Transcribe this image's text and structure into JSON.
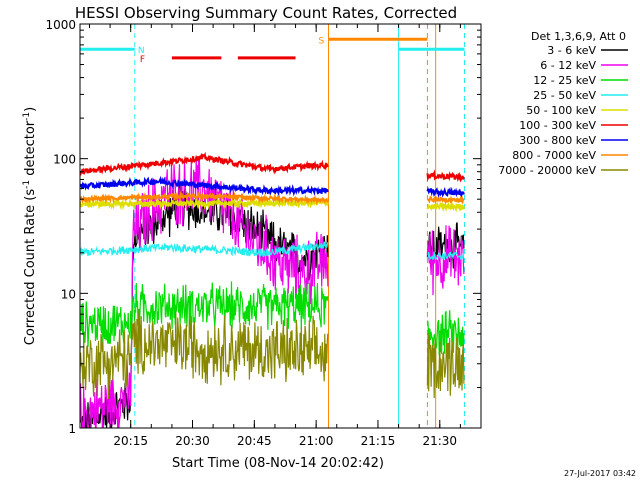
{
  "chart_data": {
    "type": "line",
    "title": "HESSI Observing Summary Count Rates, Corrected",
    "xlabel": "Start Time (08-Nov-14 20:02:42)",
    "ylabel_main": "Corrected Count Rate (s",
    "ylabel_sup1": "-1",
    "ylabel_mid": " detector",
    "ylabel_sup2": "-1",
    "ylabel_end": ")",
    "yscale": "log",
    "xlim": [
      "20:02:42",
      "21:40:00"
    ],
    "ylim": [
      1,
      1000
    ],
    "x_ticks": [
      "20:15",
      "20:30",
      "20:45",
      "21:00",
      "21:15",
      "21:30"
    ],
    "y_ticks": [
      "1",
      "10",
      "100",
      "1000"
    ],
    "footer_date": "27-Jul-2017 03:42",
    "legend_title": "Det 1,3,6,9, Att 0",
    "legend": [
      {
        "label": "3 - 6 keV",
        "color": "#000000"
      },
      {
        "label": "6 - 12 keV",
        "color": "#ee00ee"
      },
      {
        "label": "12 - 25 keV",
        "color": "#00dd00"
      },
      {
        "label": "25 - 50 keV",
        "color": "#22eeee"
      },
      {
        "label": "50 - 100 keV",
        "color": "#dddd00"
      },
      {
        "label": "100 - 300 keV",
        "color": "#ee0000"
      },
      {
        "label": "300 - 800 keV",
        "color": "#0000ee"
      },
      {
        "label": "800 - 7000 keV",
        "color": "#ff8800"
      },
      {
        "label": "7000 - 20000 keV",
        "color": "#888800"
      }
    ],
    "flag_labels": {
      "N": "N",
      "F": "F",
      "S": "S"
    },
    "segments": [
      {
        "start": "20:02:42",
        "end": "21:03:00"
      },
      {
        "start": "21:27:00",
        "end": "21:36:00"
      }
    ],
    "series": [
      {
        "name": "3 - 6 keV",
        "color": "#000000",
        "base": [
          [
            20.04,
            1.0
          ],
          [
            20.25,
            1.6
          ],
          [
            20.26,
            26
          ],
          [
            20.45,
            45
          ],
          [
            20.6,
            40
          ],
          [
            20.75,
            30
          ],
          [
            20.85,
            22
          ],
          [
            20.95,
            18
          ],
          [
            21.05,
            22
          ]
        ],
        "noise": 0.08
      },
      {
        "name": "6 - 12 keV",
        "color": "#ee00ee",
        "base": [
          [
            20.04,
            1.2
          ],
          [
            20.25,
            1.8
          ],
          [
            20.26,
            28
          ],
          [
            20.4,
            55
          ],
          [
            20.55,
            60
          ],
          [
            20.7,
            30
          ],
          [
            20.85,
            17
          ],
          [
            20.95,
            14
          ],
          [
            21.05,
            18
          ]
        ],
        "noise": 0.12
      },
      {
        "name": "12 - 25 keV",
        "color": "#00dd00",
        "base": [
          [
            20.04,
            6
          ],
          [
            20.25,
            6
          ],
          [
            20.26,
            8
          ],
          [
            20.6,
            8
          ],
          [
            21.05,
            8
          ],
          [
            21.45,
            5
          ],
          [
            21.6,
            5
          ]
        ],
        "noise": 0.08
      },
      {
        "name": "25 - 50 keV",
        "color": "#22eeee",
        "base": [
          [
            20.04,
            20
          ],
          [
            20.4,
            22
          ],
          [
            20.8,
            20
          ],
          [
            21.05,
            23
          ],
          [
            21.45,
            19
          ],
          [
            21.6,
            19
          ]
        ],
        "noise": 0.03
      },
      {
        "name": "50 - 100 keV",
        "color": "#dddd00",
        "base": [
          [
            20.04,
            46
          ],
          [
            21.05,
            47
          ],
          [
            21.45,
            44
          ],
          [
            21.6,
            44
          ]
        ],
        "noise": 0.02
      },
      {
        "name": "100 - 300 keV",
        "color": "#ee0000",
        "base": [
          [
            20.04,
            80
          ],
          [
            20.3,
            90
          ],
          [
            20.55,
            102
          ],
          [
            20.8,
            84
          ],
          [
            21.05,
            90
          ],
          [
            21.45,
            75
          ],
          [
            21.6,
            73
          ]
        ],
        "noise": 0.02
      },
      {
        "name": "300 - 800 keV",
        "color": "#0000ee",
        "base": [
          [
            20.04,
            62
          ],
          [
            20.35,
            68
          ],
          [
            20.8,
            58
          ],
          [
            21.05,
            58
          ],
          [
            21.45,
            57
          ],
          [
            21.6,
            55
          ]
        ],
        "noise": 0.02
      },
      {
        "name": "800 - 7000 keV",
        "color": "#ff8800",
        "base": [
          [
            20.04,
            50
          ],
          [
            20.5,
            53
          ],
          [
            21.05,
            49
          ],
          [
            21.45,
            50
          ],
          [
            21.6,
            49
          ]
        ],
        "noise": 0.015
      },
      {
        "name": "7000 - 20000 keV",
        "color": "#888800",
        "base": [
          [
            20.04,
            3.0
          ],
          [
            20.25,
            3.3
          ],
          [
            20.26,
            4.3
          ],
          [
            20.55,
            4.0
          ],
          [
            21.05,
            3.5
          ],
          [
            21.45,
            3.1
          ],
          [
            21.6,
            3.0
          ]
        ],
        "noise": 0.12
      }
    ],
    "flag_bars": [
      {
        "name": "night",
        "label": "N",
        "color": "#22eeee",
        "y": 650,
        "spans": [
          [
            "20:02:42",
            "20:16:00"
          ],
          [
            "21:20:00",
            "21:36:00"
          ]
        ]
      },
      {
        "name": "flare",
        "label": "F",
        "color": "#ee0000",
        "y": 560,
        "spans": [
          [
            "20:25:00",
            "20:37:00"
          ],
          [
            "20:41:00",
            "20:55:00"
          ]
        ]
      },
      {
        "name": "saa",
        "label": "S",
        "color": "#ff8800",
        "y": 770,
        "spans": [
          [
            "21:03:00",
            "21:27:00"
          ]
        ]
      }
    ],
    "vlines": [
      {
        "t": "20:02:42",
        "color": "#22eeee",
        "style": "solid"
      },
      {
        "t": "20:16:00",
        "color": "#22eeee",
        "style": "dashed"
      },
      {
        "t": "21:03:00",
        "color": "#ff8800",
        "style": "solid"
      },
      {
        "t": "21:20:00",
        "color": "#22eeee",
        "style": "solid"
      },
      {
        "t": "21:27:00",
        "color": "#ff8800",
        "style": "dashed"
      },
      {
        "t": "21:29:00",
        "color": "#ff8800",
        "style": "solid"
      },
      {
        "t": "21:36:00",
        "color": "#22eeee",
        "style": "dashed"
      }
    ]
  }
}
